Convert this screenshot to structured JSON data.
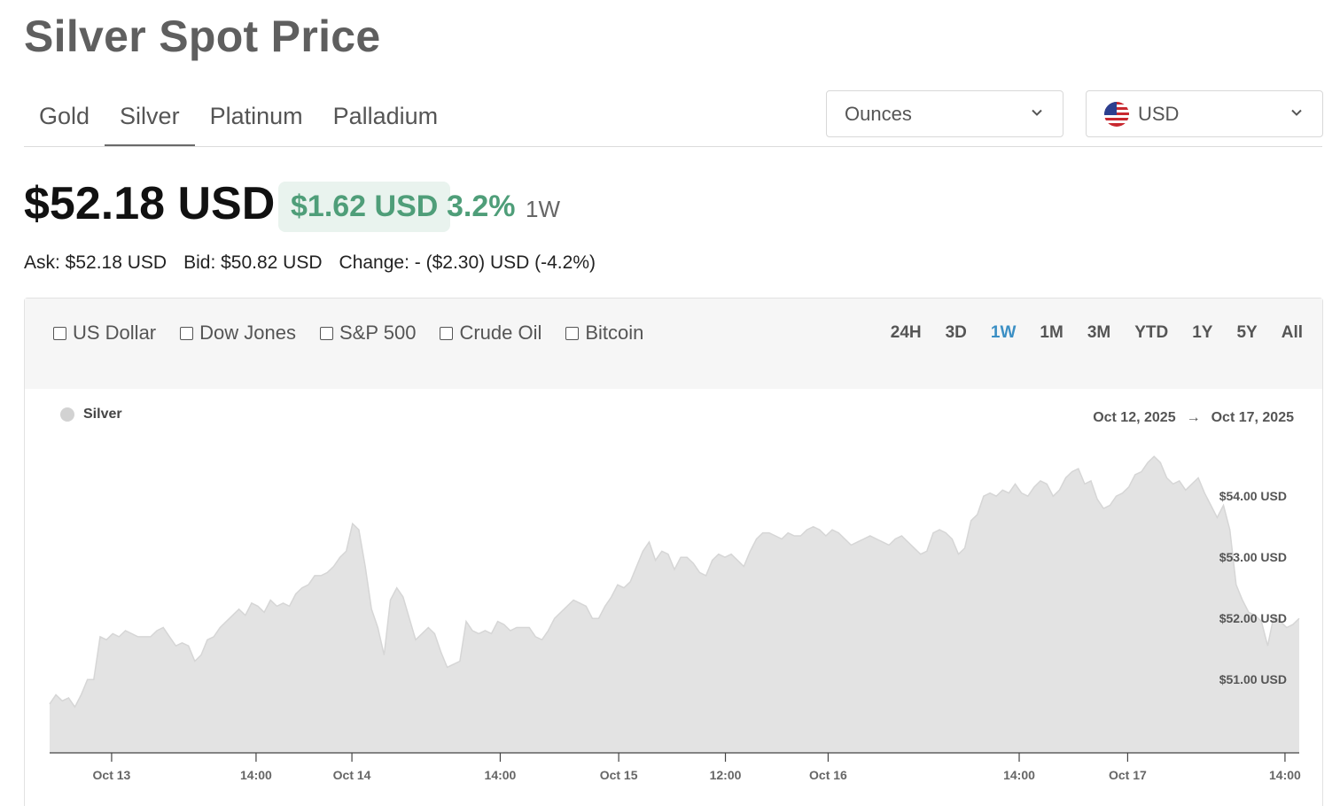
{
  "header": {
    "title": "Silver Spot Price"
  },
  "metal_tabs": [
    {
      "label": "Gold",
      "active": false
    },
    {
      "label": "Silver",
      "active": true
    },
    {
      "label": "Platinum",
      "active": false
    },
    {
      "label": "Palladium",
      "active": false
    }
  ],
  "units_select": {
    "value": "Ounces",
    "icon": "chevron-down-icon"
  },
  "currency_select": {
    "value": "USD",
    "flag": "us-flag-icon",
    "icon": "chevron-down-icon"
  },
  "price": {
    "current": "$52.18 USD",
    "change": "$1.62 USD",
    "change_percent": "3.2%",
    "period": "1W",
    "ask": "Ask: $52.18 USD",
    "bid": "Bid: $50.82 USD",
    "change_line": "Change: - ($2.30) USD (-4.2%)"
  },
  "colors": {
    "positive": "#4f9e79",
    "positive_bg": "#e9f3ee",
    "accent": "#3b8fc4",
    "area_fill": "#e3e3e3",
    "area_line": "#d6d6d6"
  },
  "compare": [
    {
      "label": "US Dollar",
      "checked": false
    },
    {
      "label": "Dow Jones",
      "checked": false
    },
    {
      "label": "S&P 500",
      "checked": false
    },
    {
      "label": "Crude Oil",
      "checked": false
    },
    {
      "label": "Bitcoin",
      "checked": false
    }
  ],
  "ranges": [
    {
      "label": "24H",
      "active": false
    },
    {
      "label": "3D",
      "active": false
    },
    {
      "label": "1W",
      "active": true
    },
    {
      "label": "1M",
      "active": false
    },
    {
      "label": "3M",
      "active": false
    },
    {
      "label": "YTD",
      "active": false
    },
    {
      "label": "1Y",
      "active": false
    },
    {
      "label": "5Y",
      "active": false
    },
    {
      "label": "All",
      "active": false
    }
  ],
  "chart_meta": {
    "start_date": "Oct 12, 2025",
    "end_date": "Oct 17, 2025",
    "arrow": "→"
  },
  "chart_data": {
    "type": "area",
    "series": [
      {
        "name": "Silver",
        "values": [
          50.6,
          50.75,
          50.65,
          50.7,
          50.55,
          50.75,
          51.0,
          51.0,
          51.7,
          51.65,
          51.75,
          51.7,
          51.8,
          51.75,
          51.7,
          51.7,
          51.7,
          51.8,
          51.85,
          51.7,
          51.55,
          51.6,
          51.55,
          51.3,
          51.4,
          51.65,
          51.7,
          51.85,
          51.95,
          52.05,
          52.15,
          52.05,
          52.25,
          52.2,
          52.1,
          52.3,
          52.2,
          52.25,
          52.2,
          52.4,
          52.5,
          52.55,
          52.7,
          52.7,
          52.75,
          52.85,
          53.0,
          53.1,
          53.55,
          53.45,
          52.85,
          52.15,
          51.85,
          51.4,
          52.3,
          52.5,
          52.35,
          52.0,
          51.65,
          51.75,
          51.85,
          51.75,
          51.45,
          51.2,
          51.25,
          51.3,
          51.95,
          51.8,
          51.75,
          51.8,
          51.75,
          51.95,
          51.9,
          51.8,
          51.85,
          51.85,
          51.85,
          51.7,
          51.65,
          51.8,
          52.0,
          52.1,
          52.2,
          52.3,
          52.25,
          52.2,
          52.0,
          52.0,
          52.2,
          52.35,
          52.55,
          52.5,
          52.6,
          52.85,
          53.1,
          53.25,
          52.95,
          53.1,
          53.05,
          52.8,
          53.0,
          53.0,
          52.9,
          52.75,
          52.7,
          52.95,
          53.05,
          53.0,
          53.05,
          52.95,
          52.85,
          53.1,
          53.3,
          53.4,
          53.4,
          53.35,
          53.3,
          53.4,
          53.35,
          53.35,
          53.45,
          53.5,
          53.45,
          53.35,
          53.45,
          53.4,
          53.3,
          53.2,
          53.25,
          53.3,
          53.35,
          53.3,
          53.25,
          53.2,
          53.3,
          53.35,
          53.25,
          53.15,
          53.05,
          53.1,
          53.4,
          53.45,
          53.4,
          53.3,
          53.05,
          53.15,
          53.6,
          53.7,
          54.0,
          54.05,
          54.0,
          54.1,
          54.05,
          54.2,
          54.05,
          54.0,
          54.15,
          54.25,
          54.2,
          54.0,
          54.1,
          54.3,
          54.4,
          54.45,
          54.2,
          54.25,
          53.95,
          53.8,
          53.85,
          54.0,
          54.05,
          54.15,
          54.35,
          54.4,
          54.55,
          54.65,
          54.55,
          54.3,
          54.2,
          54.25,
          54.1,
          54.2,
          54.3,
          54.05,
          53.85,
          53.65,
          53.85,
          53.45,
          52.55,
          52.3,
          52.1,
          52.05,
          51.95,
          51.55,
          52.05,
          51.95,
          51.85,
          51.9,
          52.0
        ]
      }
    ],
    "x_ticks": [
      "Oct 13",
      "14:00",
      "Oct 14",
      "14:00",
      "Oct 15",
      "12:00",
      "Oct 16",
      "14:00",
      "Oct 17",
      "14:00"
    ],
    "x_tick_positions": [
      0.0496,
      0.1652,
      0.2419,
      0.3606,
      0.4554,
      0.5408,
      0.623,
      0.7759,
      0.8627,
      0.9886
    ],
    "y_ticks": [
      "$54.00 USD",
      "$53.00 USD",
      "$52.00 USD",
      "$51.00 USD"
    ],
    "y_tick_values": [
      54,
      53,
      52,
      51
    ],
    "ylim": [
      49.8,
      55.35
    ],
    "xlabel": "",
    "ylabel": "",
    "grid": false,
    "legend": "top-left"
  }
}
